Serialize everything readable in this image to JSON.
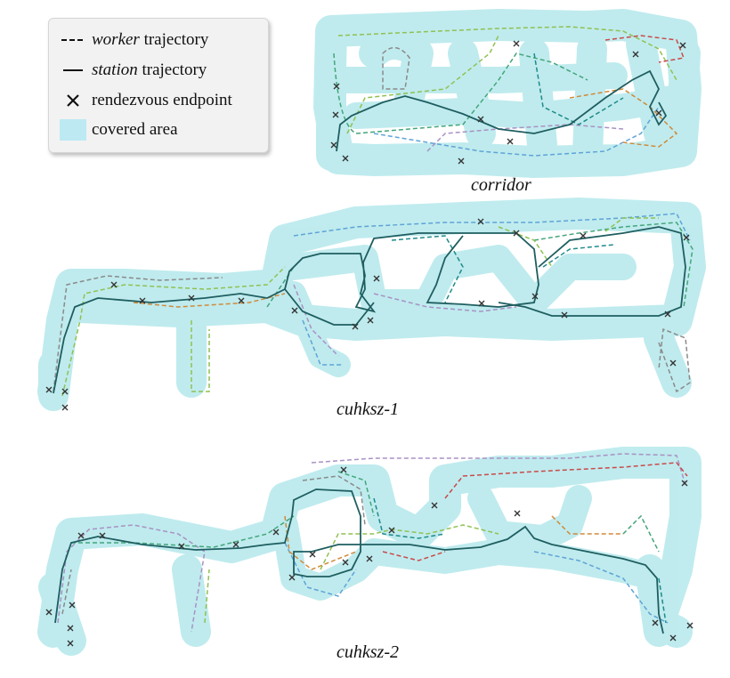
{
  "legend": {
    "worker_prefix": "worker",
    "worker_suffix": " trajectory",
    "station_prefix": "station",
    "station_suffix": " trajectory",
    "rendezvous": "rendezvous endpoint",
    "covered": "covered area"
  },
  "captions": {
    "corridor": "corridor",
    "cuhksz1": "cuhksz-1",
    "cuhksz2": "cuhksz-2"
  },
  "colors": {
    "covered_area": "#3cc3cc",
    "station": "#1f5e60",
    "endpoint_marker": "#333333",
    "worker_palette": [
      "#8fc152",
      "#43a67a",
      "#5fa3d6",
      "#a892c4",
      "#8a8a8a",
      "#d08a3a",
      "#c94a4a",
      "#1f8a8a"
    ]
  },
  "icons": {
    "worker_key": "dashed-line-icon",
    "station_key": "solid-line-icon",
    "rendezvous_key": "x-mark-icon",
    "covered_key": "area-swatch-icon"
  }
}
